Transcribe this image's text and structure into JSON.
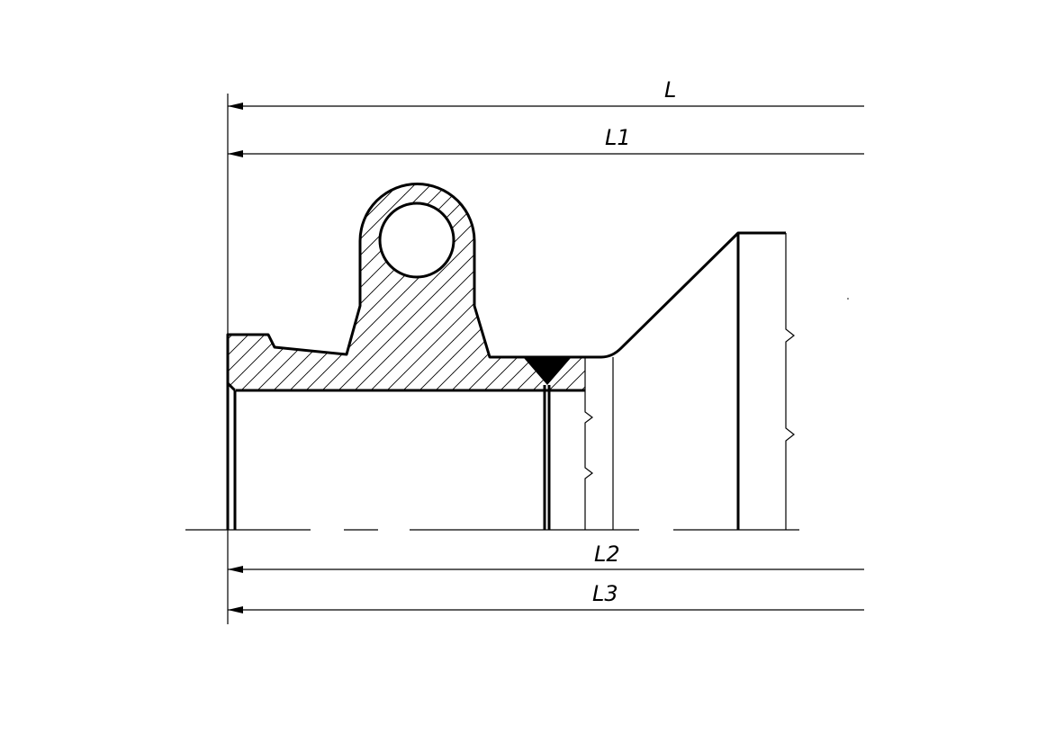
{
  "dimensions": {
    "L": "L",
    "L1": "L1",
    "L2": "L2",
    "L3": "L3"
  },
  "colors": {
    "line": "#000000",
    "background": "#ffffff"
  }
}
